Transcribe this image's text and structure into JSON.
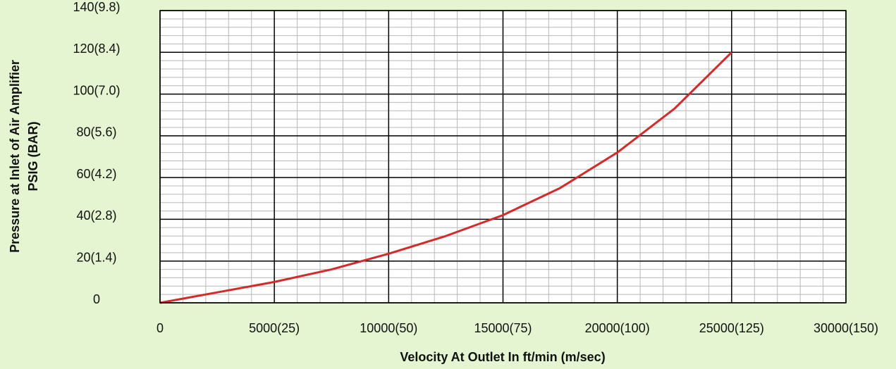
{
  "chart_data": {
    "type": "line",
    "x_label": "Velocity At Outlet In ft/min (m/sec)",
    "y_label": [
      "Pressure at Inlet of Air Amplifier",
      "PSIG (BAR)"
    ],
    "x": [
      0,
      2500,
      5000,
      7500,
      10000,
      12500,
      15000,
      17500,
      20000,
      22500,
      25000
    ],
    "series": [
      {
        "color": "#d42a2a",
        "values": [
          0,
          5,
          10,
          16,
          23.5,
          32,
          42,
          55,
          72,
          93,
          120
        ]
      }
    ],
    "xlim": [
      0,
      30000
    ],
    "xticks": [
      0,
      {
        "value": 5000,
        "label": "5000(25)"
      },
      {
        "value": 10000,
        "label": "10000(50)"
      },
      {
        "value": 15000,
        "label": "15000(75)"
      },
      {
        "value": 20000,
        "label": "20000(100)"
      },
      {
        "value": 25000,
        "label": "25000(125)"
      },
      {
        "value": 30000,
        "label": "30000(150)"
      }
    ],
    "ylim": [
      0,
      140
    ],
    "yticks": [
      0,
      {
        "value": 20,
        "label": "20(1.4)"
      },
      {
        "value": 40,
        "label": "40(2.8)"
      },
      {
        "value": 60,
        "label": "60(4.2)"
      },
      {
        "value": 80,
        "label": "80(5.6)"
      },
      {
        "value": 100,
        "label": "100(7.0)"
      },
      {
        "value": 120,
        "label": "120(8.4)"
      },
      {
        "value": 140,
        "label": "140(9.8)"
      }
    ],
    "grid": true
  }
}
